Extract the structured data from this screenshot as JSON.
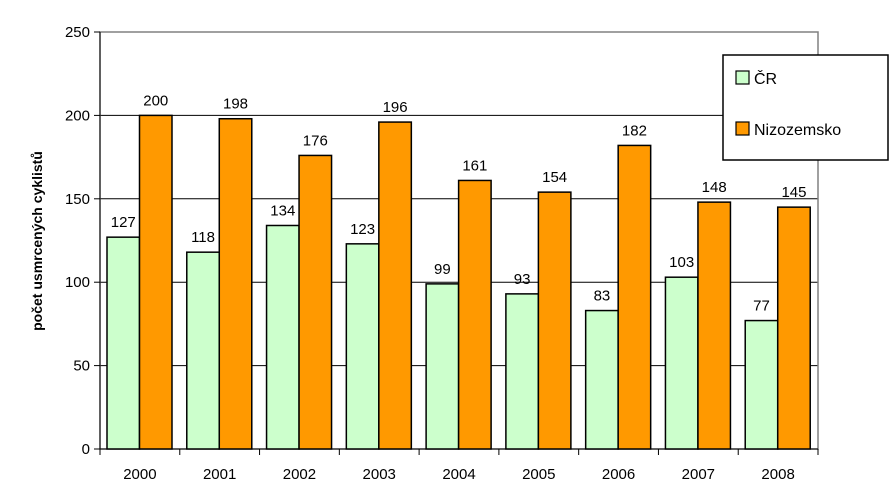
{
  "chart_data": {
    "type": "bar",
    "title": "",
    "xlabel": "",
    "ylabel": "počet usmrcených cyklistů",
    "ylim": [
      0,
      250
    ],
    "yticks": [
      0,
      50,
      100,
      150,
      200,
      250
    ],
    "categories": [
      "2000",
      "2001",
      "2002",
      "2003",
      "2004",
      "2005",
      "2006",
      "2007",
      "2008"
    ],
    "series": [
      {
        "name": "ČR",
        "color": "#ccffcc",
        "values": [
          127,
          118,
          134,
          123,
          99,
          93,
          83,
          103,
          77
        ]
      },
      {
        "name": "Nizozemsko",
        "color": "#ff9900",
        "values": [
          200,
          198,
          176,
          196,
          161,
          154,
          182,
          148,
          145
        ]
      }
    ],
    "grid": true,
    "legend": "right"
  }
}
